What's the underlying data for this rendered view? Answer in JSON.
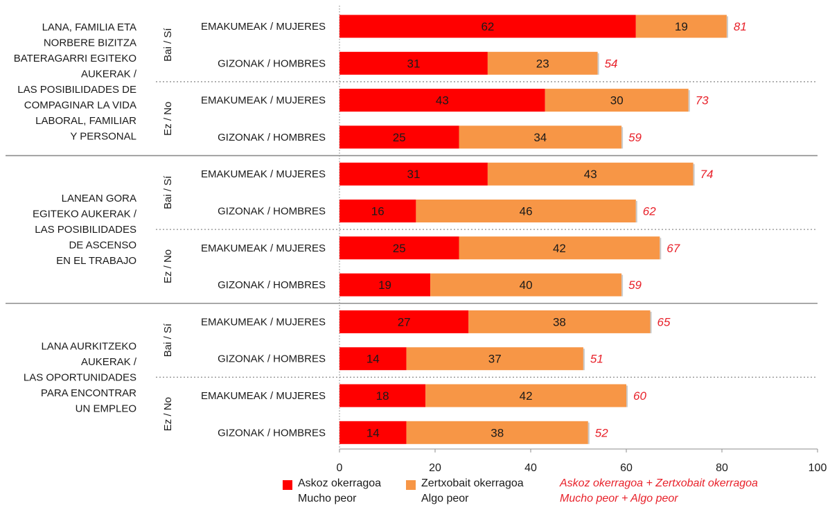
{
  "colors": {
    "much_worse": "#ff0000",
    "somewhat_worse": "#f79646",
    "total_text": "#e8212a",
    "text": "#1a1a1a",
    "separator": "#8c8c8c"
  },
  "chart_data": {
    "type": "bar",
    "orientation": "horizontal",
    "stacked": true,
    "xlim": [
      0,
      100
    ],
    "xticks": [
      0,
      20,
      40,
      60,
      80,
      100
    ],
    "groups": [
      {
        "label_lines": [
          "LANA, FAMILIA ETA",
          "NORBERE BIZITZA",
          "BATERAGARRI EGITEKO",
          "AUKERAK /",
          "LAS POSIBILIDADES DE",
          "COMPAGINAR LA VIDA",
          "LABORAL, FAMILIAR",
          "Y PERSONAL"
        ],
        "subgroups": [
          {
            "label": "Bai / Sí",
            "rows": [
              {
                "label": "EMAKUMEAK / MUJERES",
                "much_worse": 62,
                "somewhat_worse": 19,
                "total": 81
              },
              {
                "label": "GIZONAK / HOMBRES",
                "much_worse": 31,
                "somewhat_worse": 23,
                "total": 54
              }
            ]
          },
          {
            "label": "Ez / No",
            "rows": [
              {
                "label": "EMAKUMEAK / MUJERES",
                "much_worse": 43,
                "somewhat_worse": 30,
                "total": 73
              },
              {
                "label": "GIZONAK / HOMBRES",
                "much_worse": 25,
                "somewhat_worse": 34,
                "total": 59
              }
            ]
          }
        ]
      },
      {
        "label_lines": [
          "LANEAN GORA",
          "EGITEKO AUKERAK /",
          "LAS POSIBILIDADES",
          "DE ASCENSO",
          "EN EL TRABAJO"
        ],
        "subgroups": [
          {
            "label": "Bai / Sí",
            "rows": [
              {
                "label": "EMAKUMEAK / MUJERES",
                "much_worse": 31,
                "somewhat_worse": 43,
                "total": 74
              },
              {
                "label": "GIZONAK / HOMBRES",
                "much_worse": 16,
                "somewhat_worse": 46,
                "total": 62
              }
            ]
          },
          {
            "label": "Ez / No",
            "rows": [
              {
                "label": "EMAKUMEAK / MUJERES",
                "much_worse": 25,
                "somewhat_worse": 42,
                "total": 67
              },
              {
                "label": "GIZONAK / HOMBRES",
                "much_worse": 19,
                "somewhat_worse": 40,
                "total": 59
              }
            ]
          }
        ]
      },
      {
        "label_lines": [
          "LANA AURKITZEKO",
          "AUKERAK /",
          "LAS OPORTUNIDADES",
          "PARA ENCONTRAR",
          "UN EMPLEO"
        ],
        "subgroups": [
          {
            "label": "Bai / Sí",
            "rows": [
              {
                "label": "EMAKUMEAK / MUJERES",
                "much_worse": 27,
                "somewhat_worse": 38,
                "total": 65
              },
              {
                "label": "GIZONAK / HOMBRES",
                "much_worse": 14,
                "somewhat_worse": 37,
                "total": 51
              }
            ]
          },
          {
            "label": "Ez / No",
            "rows": [
              {
                "label": "EMAKUMEAK / MUJERES",
                "much_worse": 18,
                "somewhat_worse": 42,
                "total": 60
              },
              {
                "label": "GIZONAK / HOMBRES",
                "much_worse": 14,
                "somewhat_worse": 38,
                "total": 52
              }
            ]
          }
        ]
      }
    ],
    "legend": {
      "much_worse": [
        "Askoz okerragoa",
        "Mucho peor"
      ],
      "somewhat_worse": [
        "Zertxobait okerragoa",
        "Algo peor"
      ],
      "total": [
        "Askoz okerragoa + Zertxobait okerragoa",
        "Mucho peor + Algo peor"
      ]
    }
  }
}
